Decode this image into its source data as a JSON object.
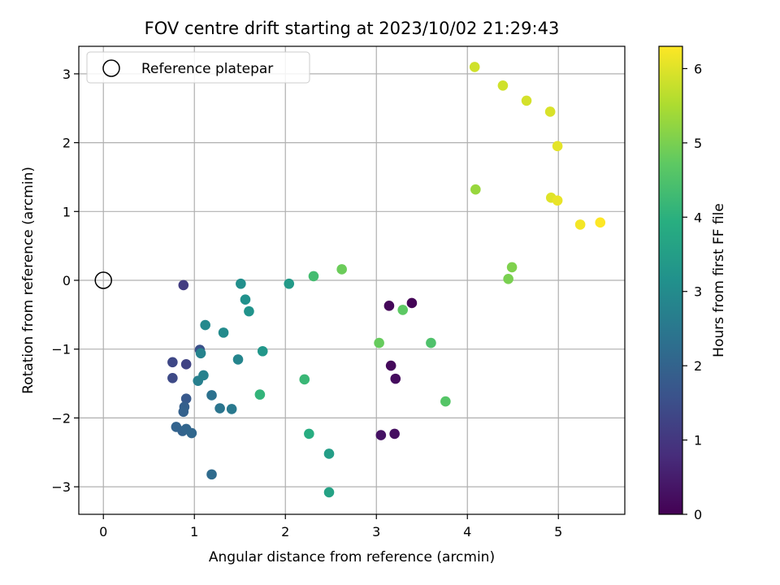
{
  "chart_data": {
    "type": "scatter",
    "title": "FOV centre drift starting at 2023/10/02 21:29:43",
    "xlabel": "Angular distance from reference (arcmin)",
    "ylabel": "Rotation from reference (arcmin)",
    "xlim": [
      -0.27,
      5.73
    ],
    "ylim": [
      -3.4,
      3.4
    ],
    "xticks": [
      0,
      1,
      2,
      3,
      4,
      5
    ],
    "yticks": [
      -3,
      -2,
      -1,
      0,
      1,
      2,
      3
    ],
    "grid": true,
    "legend": {
      "placement": "top-left",
      "entries": [
        "Reference platepar"
      ]
    },
    "reference_point": {
      "x": 0,
      "y": 0
    },
    "colorbar": {
      "label": "Hours from first FF file",
      "range": [
        0,
        6.3
      ],
      "ticks": [
        0,
        1,
        2,
        3,
        4,
        5,
        6
      ],
      "colormap": "viridis"
    },
    "points": [
      {
        "x": 3.39,
        "y": -0.33,
        "t": 0.05
      },
      {
        "x": 3.14,
        "y": -0.37,
        "t": 0.1
      },
      {
        "x": 3.16,
        "y": -1.24,
        "t": 0.15
      },
      {
        "x": 3.21,
        "y": -1.43,
        "t": 0.2
      },
      {
        "x": 3.2,
        "y": -2.23,
        "t": 0.25
      },
      {
        "x": 3.05,
        "y": -2.25,
        "t": 0.3
      },
      {
        "x": 0.88,
        "y": -0.07,
        "t": 1.1
      },
      {
        "x": 0.91,
        "y": -1.22,
        "t": 1.25
      },
      {
        "x": 0.76,
        "y": -1.19,
        "t": 1.35
      },
      {
        "x": 0.76,
        "y": -1.42,
        "t": 1.4
      },
      {
        "x": 1.06,
        "y": -1.01,
        "t": 1.55
      },
      {
        "x": 0.91,
        "y": -1.72,
        "t": 1.75
      },
      {
        "x": 0.89,
        "y": -1.84,
        "t": 1.9
      },
      {
        "x": 0.88,
        "y": -1.91,
        "t": 1.95
      },
      {
        "x": 0.8,
        "y": -2.13,
        "t": 2.0
      },
      {
        "x": 0.87,
        "y": -2.19,
        "t": 2.0
      },
      {
        "x": 0.91,
        "y": -2.16,
        "t": 2.05
      },
      {
        "x": 0.97,
        "y": -2.22,
        "t": 2.1
      },
      {
        "x": 1.19,
        "y": -2.82,
        "t": 2.2
      },
      {
        "x": 1.19,
        "y": -1.67,
        "t": 2.35
      },
      {
        "x": 1.28,
        "y": -1.86,
        "t": 2.45
      },
      {
        "x": 1.41,
        "y": -1.87,
        "t": 2.55
      },
      {
        "x": 1.04,
        "y": -1.46,
        "t": 2.7
      },
      {
        "x": 1.1,
        "y": -1.38,
        "t": 2.75
      },
      {
        "x": 1.07,
        "y": -1.06,
        "t": 2.8
      },
      {
        "x": 1.48,
        "y": -1.15,
        "t": 2.85
      },
      {
        "x": 1.12,
        "y": -0.65,
        "t": 2.95
      },
      {
        "x": 1.32,
        "y": -0.76,
        "t": 3.0
      },
      {
        "x": 1.51,
        "y": -0.05,
        "t": 3.1
      },
      {
        "x": 1.56,
        "y": -0.28,
        "t": 3.15
      },
      {
        "x": 1.6,
        "y": -0.45,
        "t": 3.2
      },
      {
        "x": 1.75,
        "y": -1.03,
        "t": 3.3
      },
      {
        "x": 2.04,
        "y": -0.05,
        "t": 3.4
      },
      {
        "x": 2.48,
        "y": -2.52,
        "t": 3.5
      },
      {
        "x": 2.48,
        "y": -3.08,
        "t": 3.6
      },
      {
        "x": 2.26,
        "y": -2.23,
        "t": 3.9
      },
      {
        "x": 1.72,
        "y": -1.66,
        "t": 4.1
      },
      {
        "x": 2.21,
        "y": -1.44,
        "t": 4.2
      },
      {
        "x": 2.31,
        "y": 0.06,
        "t": 4.35
      },
      {
        "x": 3.6,
        "y": -0.91,
        "t": 4.5
      },
      {
        "x": 3.76,
        "y": -1.76,
        "t": 4.6
      },
      {
        "x": 3.29,
        "y": -0.43,
        "t": 4.7
      },
      {
        "x": 3.03,
        "y": -0.91,
        "t": 4.8
      },
      {
        "x": 2.62,
        "y": 0.16,
        "t": 4.85
      },
      {
        "x": 4.45,
        "y": 0.02,
        "t": 5.0
      },
      {
        "x": 4.49,
        "y": 0.19,
        "t": 5.05
      },
      {
        "x": 4.09,
        "y": 1.32,
        "t": 5.3
      },
      {
        "x": 4.08,
        "y": 3.1,
        "t": 5.85
      },
      {
        "x": 4.39,
        "y": 2.83,
        "t": 5.85
      },
      {
        "x": 4.65,
        "y": 2.61,
        "t": 5.9
      },
      {
        "x": 4.91,
        "y": 2.45,
        "t": 5.95
      },
      {
        "x": 4.92,
        "y": 1.2,
        "t": 6.0
      },
      {
        "x": 4.99,
        "y": 1.95,
        "t": 6.05
      },
      {
        "x": 4.99,
        "y": 1.16,
        "t": 6.1
      },
      {
        "x": 5.24,
        "y": 0.81,
        "t": 6.2
      },
      {
        "x": 5.46,
        "y": 0.84,
        "t": 6.3
      }
    ]
  }
}
